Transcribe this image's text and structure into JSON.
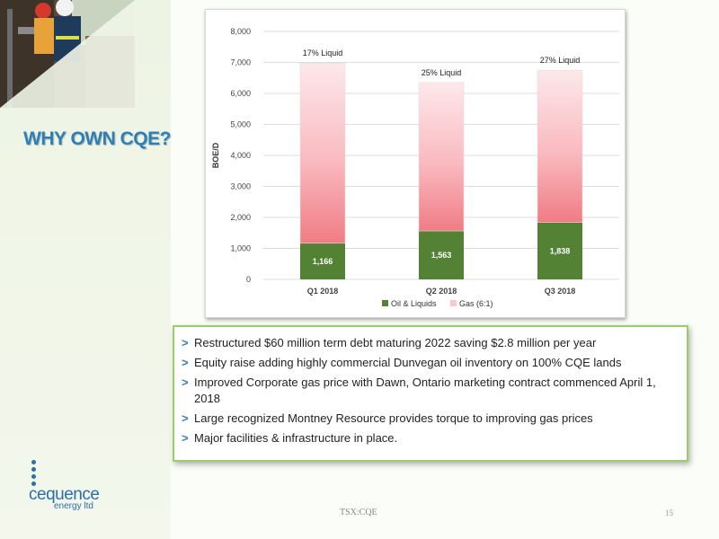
{
  "slide": {
    "title": "WHY OWN CQE?",
    "footer_ticker": "TSX:CQE",
    "page_number": "15"
  },
  "logo": {
    "name": "cequence",
    "sub": "energy ltd"
  },
  "bullets": [
    "Restructured $60 million term debt maturing 2022 saving $2.8 million per year",
    "Equity raise adding highly commercial Dunvegan oil inventory on 100% CQE lands",
    "Improved Corporate gas price with Dawn, Ontario marketing contract commenced April 1, 2018",
    "Large recognized Montney Resource provides torque to improving gas prices",
    "Major facilities & infrastructure in place."
  ],
  "bullet_marker": ">",
  "chart_data": {
    "type": "bar",
    "stacked": true,
    "categories": [
      "Q1 2018",
      "Q2 2018",
      "Q3 2018"
    ],
    "series": [
      {
        "name": "Oil & Liquids",
        "values": [
          1166,
          1563,
          1838
        ],
        "color": "#548235"
      },
      {
        "name": "Gas (6:1)",
        "values": [
          5814,
          4787,
          4912
        ],
        "color": "#f07c84"
      }
    ],
    "data_labels": [
      "1,166",
      "1,563",
      "1,838"
    ],
    "annotations": [
      "17% Liquid",
      "25% Liquid",
      "27% Liquid"
    ],
    "ylabel": "BOE/D",
    "ylim": [
      0,
      8000
    ],
    "yticks": [
      "0",
      "1,000",
      "2,000",
      "3,000",
      "4,000",
      "5,000",
      "6,000",
      "7,000",
      "8,000"
    ],
    "ytick_values": [
      0,
      1000,
      2000,
      3000,
      4000,
      5000,
      6000,
      7000,
      8000
    ],
    "legend_position": "bottom",
    "grid": true
  }
}
